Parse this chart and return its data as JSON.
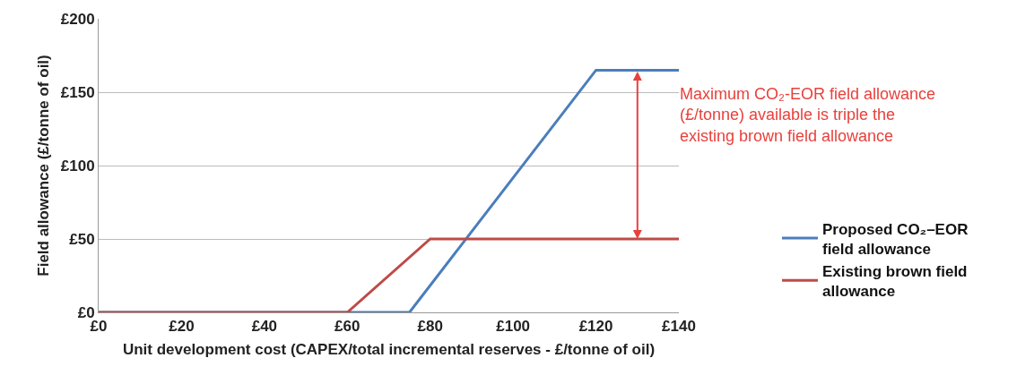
{
  "chart_data": {
    "type": "line",
    "xlabel": "Unit development cost (CAPEX/total incremental reserves - £/tonne of oil)",
    "ylabel": "Field allowance (£/tonne of oil)",
    "series": [
      {
        "name": "Proposed CO₂–EOR field allowance",
        "color": "#4a7ebb",
        "x": [
          0,
          60,
          75,
          120,
          140
        ],
        "values": [
          0,
          0,
          0,
          165,
          165
        ]
      },
      {
        "name": "Existing brown field allowance",
        "color": "#be4b48",
        "x": [
          0,
          60,
          80,
          140
        ],
        "values": [
          0,
          0,
          50,
          50
        ]
      }
    ],
    "xlim": [
      0,
      140
    ],
    "xticks": [
      {
        "value": 0,
        "label": "£0"
      },
      {
        "value": 20,
        "label": "£20"
      },
      {
        "value": 40,
        "label": "£40"
      },
      {
        "value": 60,
        "label": "£60"
      },
      {
        "value": 80,
        "label": "£80"
      },
      {
        "value": 100,
        "label": "£100"
      },
      {
        "value": 120,
        "label": "£120"
      },
      {
        "value": 140,
        "label": "£140"
      }
    ],
    "ylim": [
      0,
      200
    ],
    "yticks": [
      {
        "value": 0,
        "label": "£0"
      },
      {
        "value": 50,
        "label": "£50"
      },
      {
        "value": 100,
        "label": "£100"
      },
      {
        "value": 150,
        "label": "£150"
      },
      {
        "value": 200,
        "label": "£200"
      }
    ],
    "annotations": [
      {
        "text": "Maximum CO₂-EOR field allowance (£/tonne) available is triple the existing brown field allowance",
        "x": 130,
        "y": 165
      }
    ],
    "grid": "y",
    "legend": "right",
    "marker": "none",
    "line_style": "solid"
  }
}
